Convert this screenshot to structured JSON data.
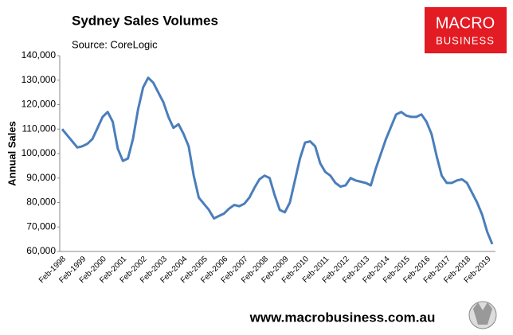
{
  "chart_data": {
    "type": "line",
    "title": "Sydney Sales Volumes",
    "subtitle": "Source: CoreLogic",
    "ylabel": "Annual Sales",
    "categories": [
      "Feb-1998",
      null,
      null,
      null,
      "Feb-1999",
      null,
      null,
      null,
      "Feb-2000",
      null,
      null,
      null,
      "Feb-2001",
      null,
      null,
      null,
      "Feb-2002",
      null,
      null,
      null,
      "Feb-2003",
      null,
      null,
      null,
      "Feb-2004",
      null,
      null,
      null,
      "Feb-2005",
      null,
      null,
      null,
      "Feb-2006",
      null,
      null,
      null,
      "Feb-2007",
      null,
      null,
      null,
      "Feb-2008",
      null,
      null,
      null,
      "Feb-2009",
      null,
      null,
      null,
      "Feb-2010",
      null,
      null,
      null,
      "Feb-2011",
      null,
      null,
      null,
      "Feb-2012",
      null,
      null,
      null,
      "Feb-2013",
      null,
      null,
      null,
      "Feb-2014",
      null,
      null,
      null,
      "Feb-2015",
      null,
      null,
      null,
      "Feb-2016",
      null,
      null,
      null,
      "Feb-2017",
      null,
      null,
      null,
      "Feb-2018",
      null,
      null,
      null,
      "Feb-2019",
      null
    ],
    "series": [
      {
        "name": "Annual Sales",
        "color": "#4a7ebb",
        "values": [
          110000,
          107500,
          105000,
          102500,
          103000,
          104000,
          106000,
          110500,
          115000,
          117000,
          113000,
          102000,
          97000,
          98000,
          106000,
          118000,
          127000,
          131000,
          129000,
          125000,
          121000,
          115000,
          110500,
          112000,
          108000,
          103000,
          91000,
          82000,
          79500,
          77000,
          73500,
          74500,
          75500,
          77500,
          79000,
          78500,
          79500,
          82000,
          86000,
          89500,
          91000,
          90000,
          83000,
          77000,
          76000,
          80000,
          89000,
          98000,
          104500,
          105000,
          103000,
          96000,
          92500,
          91000,
          88000,
          86500,
          87000,
          90000,
          89000,
          88500,
          88000,
          87000,
          94000,
          100000,
          106000,
          111000,
          116000,
          117000,
          115500,
          115000,
          115000,
          116000,
          113000,
          108000,
          99000,
          91000,
          88000,
          88000,
          89000,
          89500,
          88000,
          84000,
          80000,
          75000,
          68000,
          63000
        ]
      }
    ],
    "ylim": [
      60000,
      140000
    ],
    "yticks": [
      {
        "value": 60000,
        "label": "60,000"
      },
      {
        "value": 70000,
        "label": "70,000"
      },
      {
        "value": 80000,
        "label": "80,000"
      },
      {
        "value": 90000,
        "label": "90,000"
      },
      {
        "value": 100000,
        "label": "100,000"
      },
      {
        "value": 110000,
        "label": "110,000"
      },
      {
        "value": 120000,
        "label": "120,000"
      },
      {
        "value": 130000,
        "label": "130,000"
      },
      {
        "value": 140000,
        "label": "140,000"
      }
    ],
    "grid": false
  },
  "branding": {
    "logo_top": "MACRO",
    "logo_bottom": "BUSINESS",
    "website": "www.macrobusiness.com.au"
  }
}
